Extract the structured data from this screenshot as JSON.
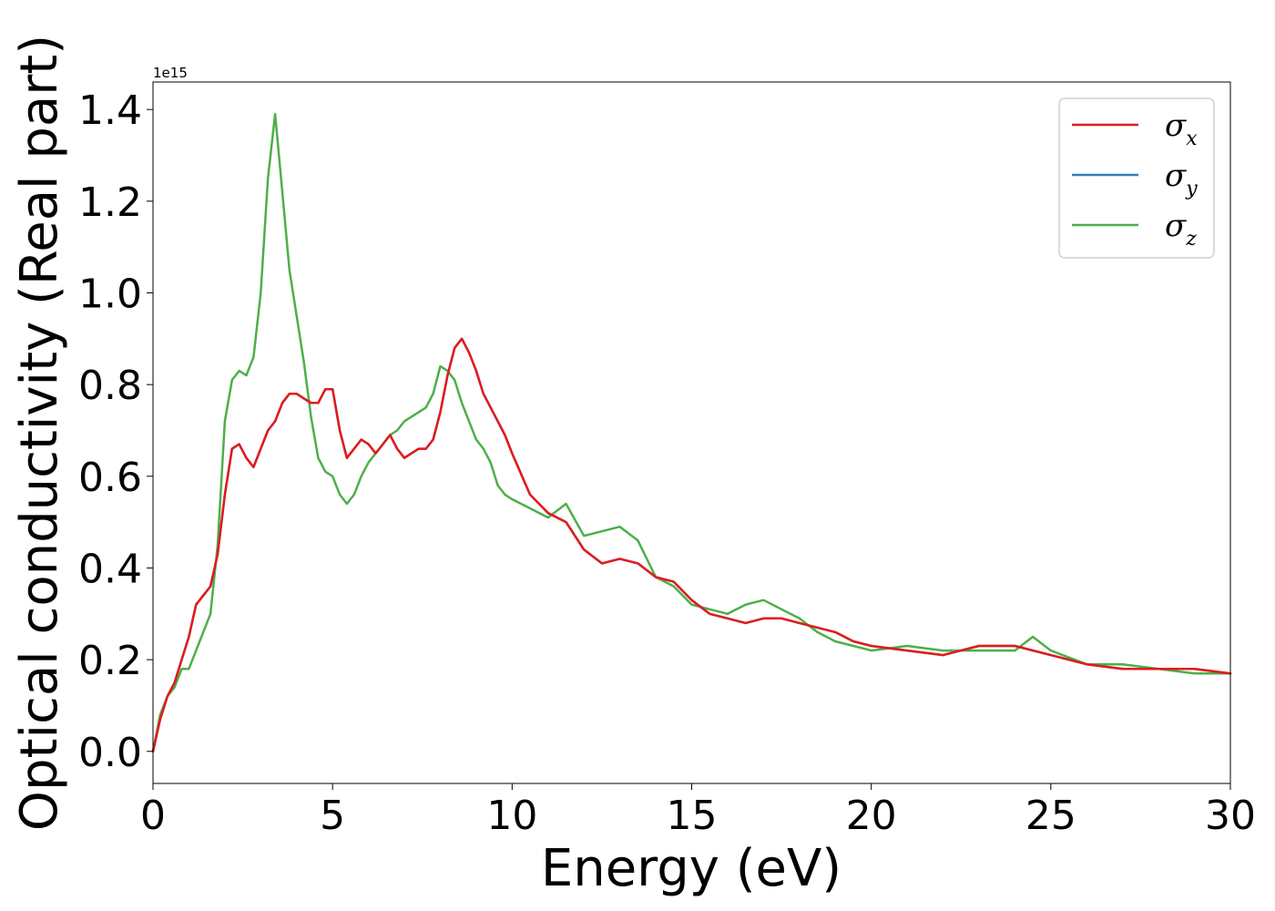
{
  "chart_data": {
    "type": "line",
    "xlabel": "Energy (eV)",
    "ylabel": "Optical conductivity (Real part)",
    "y_offset_text": "1e15",
    "xlim": [
      0,
      30
    ],
    "ylim": [
      -0.07,
      1.46
    ],
    "x_ticks": [
      0,
      5,
      10,
      15,
      20,
      25,
      30
    ],
    "x_tick_labels": [
      "0",
      "5",
      "10",
      "15",
      "20",
      "25",
      "30"
    ],
    "y_ticks": [
      0.0,
      0.2,
      0.4,
      0.6,
      0.8,
      1.0,
      1.2,
      1.4
    ],
    "y_tick_labels": [
      "0.0",
      "0.2",
      "0.4",
      "0.6",
      "0.8",
      "1.0",
      "1.2",
      "1.4"
    ],
    "grid": false,
    "legend_position": "top-right",
    "series": [
      {
        "name": "σx",
        "symbol": "σ",
        "subscript": "x",
        "color": "#e41a1c",
        "x": [
          0,
          0.2,
          0.4,
          0.6,
          0.8,
          1.0,
          1.2,
          1.4,
          1.6,
          1.8,
          2.0,
          2.2,
          2.4,
          2.6,
          2.8,
          3.0,
          3.2,
          3.4,
          3.6,
          3.8,
          4.0,
          4.2,
          4.4,
          4.6,
          4.8,
          5.0,
          5.2,
          5.4,
          5.6,
          5.8,
          6.0,
          6.2,
          6.4,
          6.6,
          6.8,
          7.0,
          7.2,
          7.4,
          7.6,
          7.8,
          8.0,
          8.2,
          8.4,
          8.6,
          8.8,
          9.0,
          9.2,
          9.4,
          9.6,
          9.8,
          10.0,
          10.5,
          11.0,
          11.5,
          12.0,
          12.5,
          13.0,
          13.5,
          14.0,
          14.5,
          15.0,
          15.5,
          16.0,
          16.5,
          17.0,
          17.5,
          18.0,
          18.5,
          19.0,
          19.5,
          20.0,
          21.0,
          22.0,
          23.0,
          24.0,
          25.0,
          26.0,
          27.0,
          28.0,
          29.0,
          30.0
        ],
        "values": [
          0.0,
          0.07,
          0.12,
          0.15,
          0.2,
          0.25,
          0.32,
          0.34,
          0.36,
          0.43,
          0.56,
          0.66,
          0.67,
          0.64,
          0.62,
          0.66,
          0.7,
          0.72,
          0.76,
          0.78,
          0.78,
          0.77,
          0.76,
          0.76,
          0.79,
          0.79,
          0.7,
          0.64,
          0.66,
          0.68,
          0.67,
          0.65,
          0.67,
          0.69,
          0.66,
          0.64,
          0.65,
          0.66,
          0.66,
          0.68,
          0.74,
          0.82,
          0.88,
          0.9,
          0.87,
          0.83,
          0.78,
          0.75,
          0.72,
          0.69,
          0.65,
          0.56,
          0.52,
          0.5,
          0.44,
          0.41,
          0.42,
          0.41,
          0.38,
          0.37,
          0.33,
          0.3,
          0.29,
          0.28,
          0.29,
          0.29,
          0.28,
          0.27,
          0.26,
          0.24,
          0.23,
          0.22,
          0.21,
          0.23,
          0.23,
          0.21,
          0.19,
          0.18,
          0.18,
          0.18,
          0.17
        ]
      },
      {
        "name": "σy",
        "symbol": "σ",
        "subscript": "y",
        "color": "#377eb8",
        "x": [
          0,
          0.2,
          0.4,
          0.6,
          0.8,
          1.0,
          1.2,
          1.4,
          1.6,
          1.8,
          2.0,
          2.2,
          2.4,
          2.6,
          2.8,
          3.0,
          3.2,
          3.4,
          3.6,
          3.8,
          4.0,
          4.2,
          4.4,
          4.6,
          4.8,
          5.0,
          5.2,
          5.4,
          5.6,
          5.8,
          6.0,
          6.2,
          6.4,
          6.6,
          6.8,
          7.0,
          7.2,
          7.4,
          7.6,
          7.8,
          8.0,
          8.2,
          8.4,
          8.6,
          8.8,
          9.0,
          9.2,
          9.4,
          9.6,
          9.8,
          10.0,
          10.5,
          11.0,
          11.5,
          12.0,
          12.5,
          13.0,
          13.5,
          14.0,
          14.5,
          15.0,
          15.5,
          16.0,
          16.5,
          17.0,
          17.5,
          18.0,
          18.5,
          19.0,
          19.5,
          20.0,
          21.0,
          22.0,
          23.0,
          24.0,
          25.0,
          26.0,
          27.0,
          28.0,
          29.0,
          30.0
        ],
        "values": [
          0.0,
          0.07,
          0.12,
          0.15,
          0.2,
          0.25,
          0.32,
          0.34,
          0.36,
          0.43,
          0.56,
          0.66,
          0.67,
          0.64,
          0.62,
          0.66,
          0.7,
          0.72,
          0.76,
          0.78,
          0.78,
          0.77,
          0.76,
          0.76,
          0.79,
          0.79,
          0.7,
          0.64,
          0.66,
          0.68,
          0.67,
          0.65,
          0.67,
          0.69,
          0.66,
          0.64,
          0.65,
          0.66,
          0.66,
          0.68,
          0.74,
          0.82,
          0.88,
          0.9,
          0.87,
          0.83,
          0.78,
          0.75,
          0.72,
          0.69,
          0.65,
          0.56,
          0.52,
          0.5,
          0.44,
          0.41,
          0.42,
          0.41,
          0.38,
          0.37,
          0.33,
          0.3,
          0.29,
          0.28,
          0.29,
          0.29,
          0.28,
          0.27,
          0.26,
          0.24,
          0.23,
          0.22,
          0.21,
          0.23,
          0.23,
          0.21,
          0.19,
          0.18,
          0.18,
          0.18,
          0.17
        ]
      },
      {
        "name": "σz",
        "symbol": "σ",
        "subscript": "z",
        "color": "#4daf4a",
        "x": [
          0,
          0.2,
          0.4,
          0.6,
          0.8,
          1.0,
          1.2,
          1.4,
          1.6,
          1.8,
          2.0,
          2.2,
          2.4,
          2.6,
          2.8,
          3.0,
          3.2,
          3.4,
          3.6,
          3.8,
          4.0,
          4.2,
          4.4,
          4.6,
          4.8,
          5.0,
          5.2,
          5.4,
          5.6,
          5.8,
          6.0,
          6.2,
          6.4,
          6.6,
          6.8,
          7.0,
          7.2,
          7.4,
          7.6,
          7.8,
          8.0,
          8.2,
          8.4,
          8.6,
          8.8,
          9.0,
          9.2,
          9.4,
          9.6,
          9.8,
          10.0,
          10.5,
          11.0,
          11.5,
          12.0,
          12.5,
          13.0,
          13.5,
          14.0,
          14.5,
          15.0,
          15.5,
          16.0,
          16.5,
          17.0,
          17.5,
          18.0,
          18.5,
          19.0,
          19.5,
          20.0,
          21.0,
          22.0,
          23.0,
          24.0,
          24.5,
          25.0,
          26.0,
          27.0,
          28.0,
          29.0,
          30.0
        ],
        "values": [
          0.0,
          0.08,
          0.12,
          0.14,
          0.18,
          0.18,
          0.22,
          0.26,
          0.3,
          0.45,
          0.72,
          0.81,
          0.83,
          0.82,
          0.86,
          1.0,
          1.25,
          1.39,
          1.22,
          1.05,
          0.95,
          0.85,
          0.73,
          0.64,
          0.61,
          0.6,
          0.56,
          0.54,
          0.56,
          0.6,
          0.63,
          0.65,
          0.67,
          0.69,
          0.7,
          0.72,
          0.73,
          0.74,
          0.75,
          0.78,
          0.84,
          0.83,
          0.81,
          0.76,
          0.72,
          0.68,
          0.66,
          0.63,
          0.58,
          0.56,
          0.55,
          0.53,
          0.51,
          0.54,
          0.47,
          0.48,
          0.49,
          0.46,
          0.38,
          0.36,
          0.32,
          0.31,
          0.3,
          0.32,
          0.33,
          0.31,
          0.29,
          0.26,
          0.24,
          0.23,
          0.22,
          0.23,
          0.22,
          0.22,
          0.22,
          0.25,
          0.22,
          0.19,
          0.19,
          0.18,
          0.17,
          0.17
        ]
      }
    ]
  }
}
